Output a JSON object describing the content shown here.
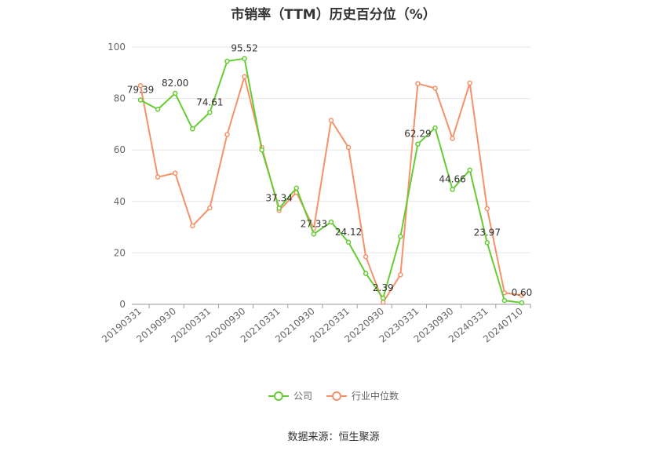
{
  "chart_data": {
    "type": "line",
    "title": "市销率（TTM）历史百分位（%）",
    "xlabel": "",
    "ylabel": "",
    "ylim": [
      0,
      100
    ],
    "yticks": [
      0,
      20,
      40,
      60,
      80,
      100
    ],
    "grid": true,
    "legend_position": "bottom",
    "x": [
      "20190331",
      "20190630",
      "20190930",
      "20191231",
      "20200331",
      "20200630",
      "20200930",
      "20201231",
      "20210331",
      "20210630",
      "20210930",
      "20211231",
      "20220331",
      "20220630",
      "20220930",
      "20221231",
      "20230331",
      "20230630",
      "20230930",
      "20231231",
      "20240331",
      "20240630",
      "20240710"
    ],
    "x_tick_labels": [
      "20190331",
      "20190930",
      "20200331",
      "20200930",
      "20210331",
      "20210930",
      "20220331",
      "20220930",
      "20230331",
      "20230930",
      "20240331",
      "20240710"
    ],
    "series": [
      {
        "name": "公司",
        "color": "#66cc33",
        "values": [
          79.39,
          75.8,
          82.0,
          68.2,
          74.61,
          94.5,
          95.52,
          60.0,
          37.34,
          45.2,
          27.33,
          32.0,
          24.12,
          12.0,
          2.39,
          26.4,
          62.29,
          68.6,
          44.66,
          52.2,
          23.97,
          1.5,
          0.6
        ],
        "labels": {
          "0": "79.39",
          "2": "82.00",
          "4": "74.61",
          "6": "95.52",
          "8": "37.34",
          "10": "27.33",
          "12": "24.12",
          "14": "2.39",
          "16": "62.29",
          "18": "44.66",
          "20": "23.97",
          "22": "0.60"
        }
      },
      {
        "name": "行业中位数",
        "color": "#f4926a",
        "values": [
          85.0,
          49.5,
          51.0,
          30.5,
          37.5,
          66.0,
          88.5,
          61.0,
          36.5,
          43.5,
          29.5,
          71.5,
          61.0,
          18.5,
          0.8,
          11.5,
          85.8,
          84.0,
          64.5,
          86.0,
          37.2,
          4.5,
          3.5
        ]
      }
    ]
  },
  "legend": {
    "company": "公司",
    "industry": "行业中位数"
  },
  "source": "数据来源：恒生聚源"
}
